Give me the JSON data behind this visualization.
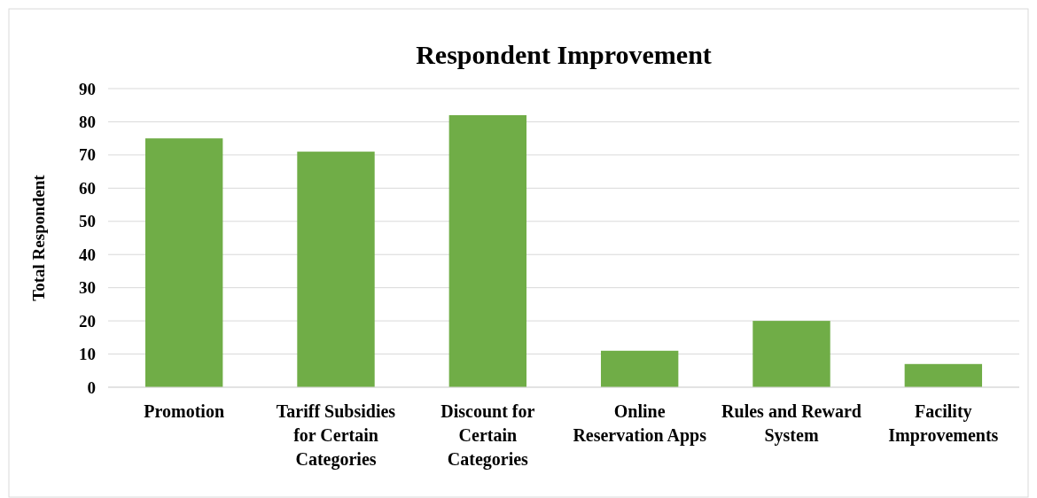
{
  "chart_data": {
    "type": "bar",
    "title": "Respondent Improvement",
    "ylabel": "Total Respondent",
    "categories": [
      "Promotion",
      "Tariff Subsidies for Certain Categories",
      "Discount for Certain Categories",
      "Online Reservation Apps",
      "Rules and Reward System",
      "Facility Improvements"
    ],
    "values": [
      75,
      71,
      82,
      11,
      20,
      7
    ],
    "color": "#70ad47",
    "ylim": [
      0,
      90
    ],
    "yticks": [
      0,
      10,
      20,
      30,
      40,
      50,
      60,
      70,
      80,
      90
    ],
    "grid": "y"
  }
}
